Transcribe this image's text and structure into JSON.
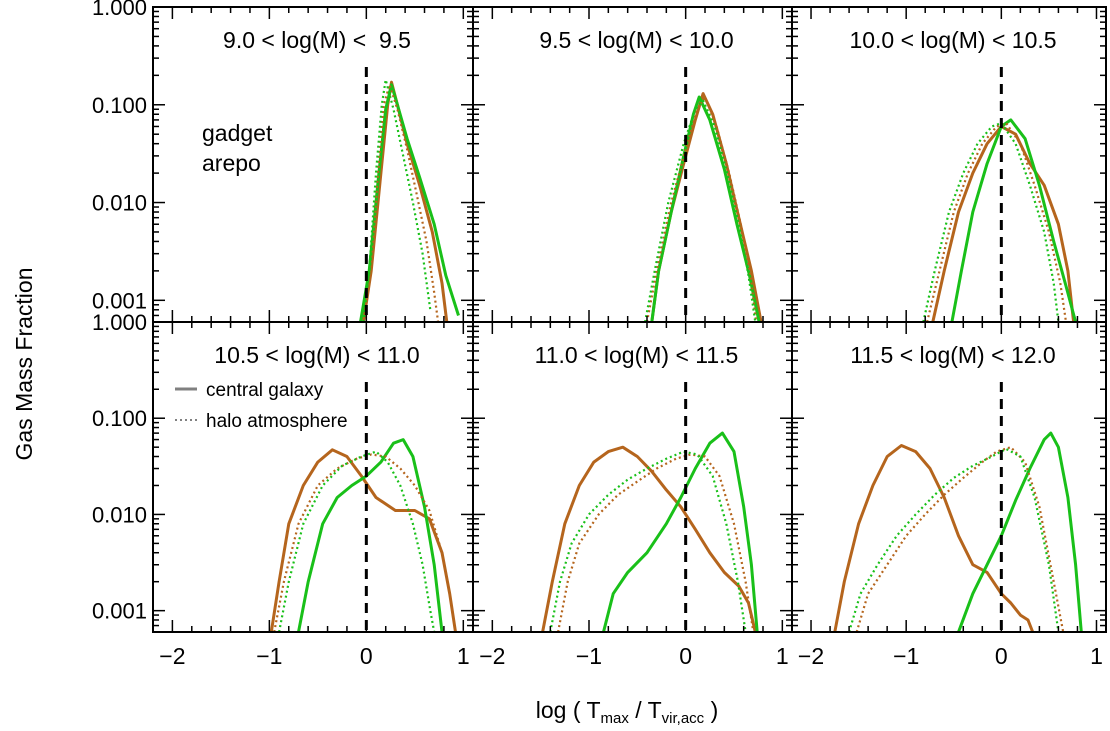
{
  "figure": {
    "ylabel": "Gas Mass Fraction",
    "xlabel_main": "log ( T",
    "xlabel_sub1": "max",
    "xlabel_mid": " / T",
    "xlabel_sub2": "vir,acc",
    "xlabel_end": " )"
  },
  "legend": {
    "gadget": "gadget",
    "arepo": "arepo",
    "central": "central galaxy",
    "halo": "halo atmosphere"
  },
  "colors": {
    "gadget": "#b5651d",
    "arepo": "#19c019",
    "vline": "#000000",
    "legend_line": "#808080",
    "legend_text": "#808080"
  },
  "chart_data": [
    {
      "type": "line",
      "title": "9.0 < log(M) <  9.5",
      "xlim": [
        -2.2,
        1.1
      ],
      "ylim": [
        0.0006,
        1.0
      ],
      "yscale": "log",
      "xticks": [
        "−2",
        "−1",
        "0",
        "1"
      ],
      "yticks": [
        "0.001",
        "0.010",
        "0.100",
        "1.000"
      ],
      "series": [
        {
          "name": "gadget",
          "style": "solid",
          "x": [
            -0.03,
            0.05,
            0.15,
            0.22,
            0.26,
            0.32,
            0.42,
            0.55,
            0.68,
            0.78,
            0.83
          ],
          "y": [
            0.0006,
            0.002,
            0.02,
            0.1,
            0.17,
            0.1,
            0.04,
            0.015,
            0.005,
            0.0015,
            0.0006
          ]
        },
        {
          "name": "arepo",
          "style": "solid",
          "x": [
            -0.06,
            0.03,
            0.13,
            0.2,
            0.26,
            0.32,
            0.42,
            0.55,
            0.7,
            0.82,
            0.95
          ],
          "y": [
            0.0006,
            0.002,
            0.02,
            0.09,
            0.16,
            0.1,
            0.045,
            0.018,
            0.006,
            0.0018,
            0.0007
          ]
        },
        {
          "name": "gadget",
          "style": "dotted",
          "x": [
            -0.03,
            0.05,
            0.12,
            0.18,
            0.24,
            0.32,
            0.42,
            0.52,
            0.62,
            0.7,
            0.74
          ],
          "y": [
            0.0006,
            0.002,
            0.02,
            0.1,
            0.16,
            0.09,
            0.035,
            0.012,
            0.004,
            0.0012,
            0.0006
          ]
        },
        {
          "name": "arepo",
          "style": "dotted",
          "x": [
            -0.03,
            0.03,
            0.1,
            0.16,
            0.2,
            0.28,
            0.38,
            0.48,
            0.58,
            0.66
          ],
          "y": [
            0.0006,
            0.002,
            0.02,
            0.1,
            0.18,
            0.09,
            0.03,
            0.01,
            0.003,
            0.0008
          ]
        }
      ]
    },
    {
      "type": "line",
      "title": "9.5 < log(M) < 10.0",
      "xlim": [
        -2.2,
        1.1
      ],
      "ylim": [
        0.0006,
        1.0
      ],
      "yscale": "log",
      "xticks": [
        "−2",
        "−1",
        "0",
        "1"
      ],
      "yticks": [
        "0.001",
        "0.010",
        "0.100",
        "1.000"
      ],
      "series": [
        {
          "name": "gadget",
          "style": "solid",
          "x": [
            -0.35,
            -0.28,
            -0.15,
            -0.02,
            0.1,
            0.18,
            0.28,
            0.42,
            0.55,
            0.68,
            0.78
          ],
          "y": [
            0.0006,
            0.002,
            0.008,
            0.025,
            0.07,
            0.13,
            0.08,
            0.025,
            0.007,
            0.002,
            0.0006
          ]
        },
        {
          "name": "arepo",
          "style": "solid",
          "x": [
            -0.35,
            -0.28,
            -0.15,
            -0.02,
            0.08,
            0.14,
            0.25,
            0.4,
            0.53,
            0.66,
            0.76
          ],
          "y": [
            0.0006,
            0.002,
            0.008,
            0.03,
            0.08,
            0.12,
            0.07,
            0.022,
            0.006,
            0.0018,
            0.0006
          ]
        },
        {
          "name": "gadget",
          "style": "dotted",
          "x": [
            -0.4,
            -0.3,
            -0.15,
            0.0,
            0.12,
            0.2,
            0.32,
            0.45,
            0.57,
            0.67,
            0.73
          ],
          "y": [
            0.0006,
            0.002,
            0.01,
            0.035,
            0.09,
            0.12,
            0.06,
            0.02,
            0.006,
            0.0018,
            0.0006
          ]
        },
        {
          "name": "arepo",
          "style": "dotted",
          "x": [
            -0.42,
            -0.32,
            -0.18,
            -0.02,
            0.1,
            0.18,
            0.3,
            0.43,
            0.55,
            0.65,
            0.72
          ],
          "y": [
            0.0006,
            0.002,
            0.01,
            0.04,
            0.09,
            0.11,
            0.06,
            0.02,
            0.006,
            0.0018,
            0.0006
          ]
        }
      ]
    },
    {
      "type": "line",
      "title": "10.0 < log(M) < 10.5",
      "xlim": [
        -2.2,
        1.1
      ],
      "ylim": [
        0.0006,
        1.0
      ],
      "yscale": "log",
      "xticks": [
        "−2",
        "−1",
        "0",
        "1"
      ],
      "yticks": [
        "0.001",
        "0.010",
        "0.100",
        "1.000"
      ],
      "series": [
        {
          "name": "gadget",
          "style": "solid",
          "x": [
            -0.72,
            -0.6,
            -0.45,
            -0.3,
            -0.15,
            0.0,
            0.15,
            0.3,
            0.45,
            0.6,
            0.7,
            0.76
          ],
          "y": [
            0.0006,
            0.002,
            0.008,
            0.02,
            0.04,
            0.06,
            0.05,
            0.025,
            0.015,
            0.006,
            0.002,
            0.0006
          ]
        },
        {
          "name": "arepo",
          "style": "solid",
          "x": [
            -0.52,
            -0.42,
            -0.3,
            -0.15,
            0.0,
            0.1,
            0.25,
            0.4,
            0.55,
            0.68,
            0.78
          ],
          "y": [
            0.0006,
            0.002,
            0.008,
            0.025,
            0.06,
            0.07,
            0.045,
            0.015,
            0.004,
            0.0014,
            0.0006
          ]
        },
        {
          "name": "gadget",
          "style": "dotted",
          "x": [
            -0.78,
            -0.65,
            -0.5,
            -0.35,
            -0.2,
            -0.05,
            0.05,
            0.2,
            0.35,
            0.5,
            0.62,
            0.68
          ],
          "y": [
            0.0006,
            0.002,
            0.008,
            0.02,
            0.04,
            0.06,
            0.065,
            0.04,
            0.015,
            0.005,
            0.0015,
            0.0006
          ]
        },
        {
          "name": "arepo",
          "style": "dotted",
          "x": [
            -0.82,
            -0.7,
            -0.55,
            -0.4,
            -0.25,
            -0.1,
            0.0,
            0.15,
            0.3,
            0.45,
            0.55,
            0.6
          ],
          "y": [
            0.0006,
            0.002,
            0.008,
            0.02,
            0.04,
            0.06,
            0.065,
            0.04,
            0.015,
            0.005,
            0.0015,
            0.0006
          ]
        }
      ]
    },
    {
      "type": "line",
      "title": "10.5 < log(M) < 11.0",
      "xlim": [
        -2.2,
        1.1
      ],
      "ylim": [
        0.0006,
        1.0
      ],
      "yscale": "log",
      "xticks": [
        "−2",
        "−1",
        "0",
        "1"
      ],
      "yticks": [
        "0.001",
        "0.010",
        "0.100",
        "1.000"
      ],
      "series": [
        {
          "name": "gadget",
          "style": "solid",
          "x": [
            -0.98,
            -0.9,
            -0.8,
            -0.65,
            -0.5,
            -0.35,
            -0.2,
            -0.05,
            0.1,
            0.3,
            0.5,
            0.65,
            0.78,
            0.86,
            0.92
          ],
          "y": [
            0.0006,
            0.002,
            0.008,
            0.02,
            0.035,
            0.047,
            0.04,
            0.025,
            0.015,
            0.011,
            0.011,
            0.009,
            0.004,
            0.0015,
            0.0006
          ]
        },
        {
          "name": "arepo",
          "style": "solid",
          "x": [
            -0.7,
            -0.6,
            -0.45,
            -0.3,
            -0.15,
            0.0,
            0.15,
            0.28,
            0.38,
            0.48,
            0.6,
            0.7,
            0.78
          ],
          "y": [
            0.0006,
            0.002,
            0.008,
            0.015,
            0.02,
            0.025,
            0.035,
            0.055,
            0.06,
            0.04,
            0.012,
            0.003,
            0.0006
          ]
        },
        {
          "name": "gadget",
          "style": "dotted",
          "x": [
            -0.95,
            -0.85,
            -0.7,
            -0.5,
            -0.3,
            -0.1,
            0.05,
            0.2,
            0.35,
            0.5,
            0.65,
            0.78,
            0.86,
            0.92
          ],
          "y": [
            0.0006,
            0.002,
            0.008,
            0.02,
            0.03,
            0.038,
            0.042,
            0.04,
            0.03,
            0.02,
            0.011,
            0.004,
            0.0015,
            0.0006
          ]
        },
        {
          "name": "arepo",
          "style": "dotted",
          "x": [
            -0.9,
            -0.8,
            -0.65,
            -0.45,
            -0.25,
            -0.05,
            0.1,
            0.22,
            0.35,
            0.48,
            0.58,
            0.66,
            0.7
          ],
          "y": [
            0.0006,
            0.002,
            0.008,
            0.02,
            0.032,
            0.04,
            0.045,
            0.035,
            0.02,
            0.008,
            0.003,
            0.001,
            0.0006
          ]
        }
      ]
    },
    {
      "type": "line",
      "title": "11.0 < log(M) < 11.5",
      "xlim": [
        -2.2,
        1.1
      ],
      "ylim": [
        0.0006,
        1.0
      ],
      "yscale": "log",
      "xticks": [
        "−2",
        "−1",
        "0",
        "1"
      ],
      "yticks": [
        "0.001",
        "0.010",
        "0.100",
        "1.000"
      ],
      "series": [
        {
          "name": "gadget",
          "style": "solid",
          "x": [
            -1.48,
            -1.38,
            -1.25,
            -1.1,
            -0.95,
            -0.8,
            -0.65,
            -0.5,
            -0.35,
            -0.2,
            -0.05,
            0.1,
            0.25,
            0.4,
            0.55,
            0.65,
            0.72
          ],
          "y": [
            0.0006,
            0.002,
            0.008,
            0.02,
            0.035,
            0.045,
            0.05,
            0.04,
            0.028,
            0.018,
            0.012,
            0.007,
            0.004,
            0.0025,
            0.0018,
            0.0012,
            0.0006
          ]
        },
        {
          "name": "arepo",
          "style": "solid",
          "x": [
            -0.85,
            -0.75,
            -0.6,
            -0.4,
            -0.2,
            -0.05,
            0.1,
            0.25,
            0.38,
            0.5,
            0.6,
            0.68,
            0.74
          ],
          "y": [
            0.0006,
            0.0015,
            0.0025,
            0.004,
            0.008,
            0.015,
            0.03,
            0.055,
            0.07,
            0.045,
            0.012,
            0.003,
            0.0006
          ]
        },
        {
          "name": "gadget",
          "style": "dotted",
          "x": [
            -1.32,
            -1.22,
            -1.1,
            -0.9,
            -0.7,
            -0.5,
            -0.3,
            -0.1,
            0.05,
            0.2,
            0.35,
            0.5,
            0.62,
            0.7
          ],
          "y": [
            0.0006,
            0.002,
            0.005,
            0.01,
            0.016,
            0.022,
            0.03,
            0.038,
            0.042,
            0.04,
            0.025,
            0.008,
            0.002,
            0.0006
          ]
        },
        {
          "name": "arepo",
          "style": "dotted",
          "x": [
            -1.4,
            -1.3,
            -1.18,
            -1.0,
            -0.8,
            -0.6,
            -0.4,
            -0.2,
            -0.02,
            0.12,
            0.28,
            0.42,
            0.54,
            0.62
          ],
          "y": [
            0.0006,
            0.002,
            0.005,
            0.01,
            0.016,
            0.023,
            0.03,
            0.038,
            0.045,
            0.042,
            0.025,
            0.008,
            0.002,
            0.0006
          ]
        }
      ]
    },
    {
      "type": "line",
      "title": "11.5 < log(M) < 12.0",
      "xlim": [
        -2.2,
        1.1
      ],
      "ylim": [
        0.0006,
        1.0
      ],
      "yscale": "log",
      "xticks": [
        "−2",
        "−1",
        "0",
        "1"
      ],
      "yticks": [
        "0.001",
        "0.010",
        "0.100",
        "1.000"
      ],
      "series": [
        {
          "name": "gadget",
          "style": "solid",
          "x": [
            -1.75,
            -1.65,
            -1.5,
            -1.35,
            -1.2,
            -1.05,
            -0.9,
            -0.75,
            -0.6,
            -0.45,
            -0.3,
            -0.15,
            0.0,
            0.1,
            0.2,
            0.28,
            0.33
          ],
          "y": [
            0.0006,
            0.002,
            0.008,
            0.02,
            0.04,
            0.052,
            0.045,
            0.03,
            0.015,
            0.006,
            0.003,
            0.0025,
            0.0015,
            0.0012,
            0.0009,
            0.0008,
            0.0006
          ]
        },
        {
          "name": "arepo",
          "style": "solid",
          "x": [
            -0.45,
            -0.3,
            -0.15,
            0.0,
            0.15,
            0.3,
            0.45,
            0.52,
            0.6,
            0.7,
            0.78,
            0.84
          ],
          "y": [
            0.0006,
            0.0015,
            0.003,
            0.006,
            0.014,
            0.03,
            0.06,
            0.07,
            0.05,
            0.015,
            0.003,
            0.0006
          ]
        },
        {
          "name": "gadget",
          "style": "dotted",
          "x": [
            -1.52,
            -1.4,
            -1.2,
            -1.0,
            -0.8,
            -0.6,
            -0.4,
            -0.2,
            -0.05,
            0.1,
            0.25,
            0.4,
            0.55,
            0.65
          ],
          "y": [
            0.0006,
            0.0015,
            0.003,
            0.006,
            0.01,
            0.016,
            0.024,
            0.035,
            0.045,
            0.05,
            0.035,
            0.012,
            0.002,
            0.0006
          ]
        },
        {
          "name": "arepo",
          "style": "dotted",
          "x": [
            -1.6,
            -1.48,
            -1.3,
            -1.1,
            -0.9,
            -0.7,
            -0.5,
            -0.3,
            -0.1,
            0.05,
            0.2,
            0.35,
            0.5,
            0.6
          ],
          "y": [
            0.0006,
            0.0015,
            0.003,
            0.006,
            0.01,
            0.016,
            0.024,
            0.032,
            0.04,
            0.048,
            0.04,
            0.015,
            0.003,
            0.0006
          ]
        }
      ]
    }
  ]
}
